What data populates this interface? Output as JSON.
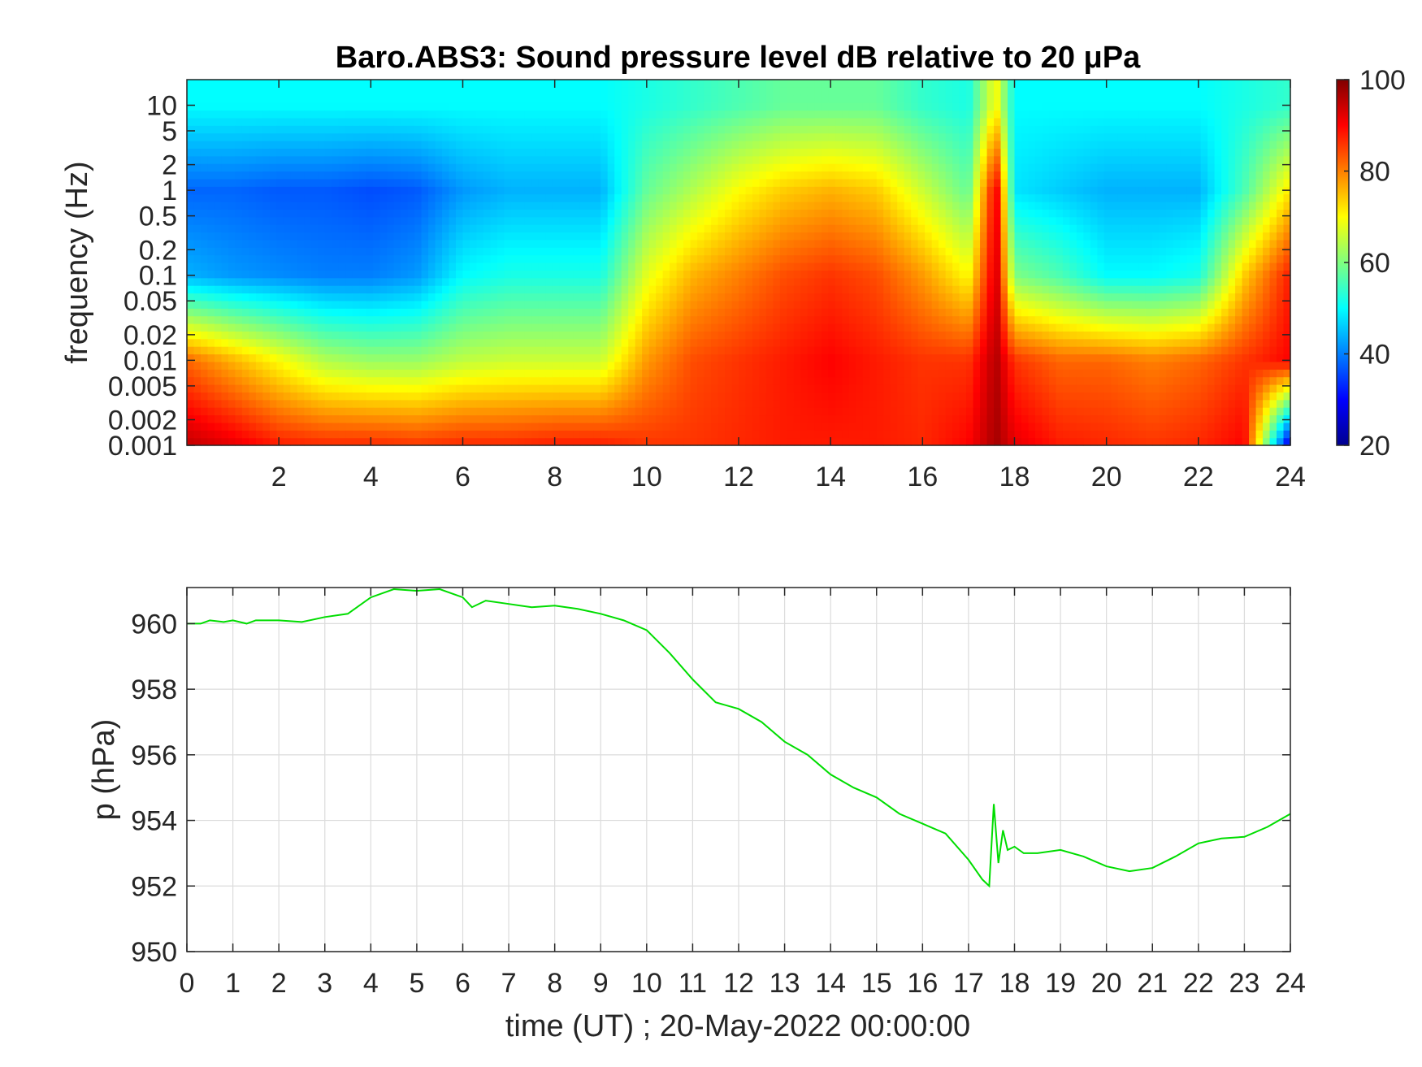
{
  "chart_data": [
    {
      "type": "heatmap",
      "title": "Baro.ABS3: Sound pressure level dB relative to 20 μPa",
      "ylabel": "frequency (Hz)",
      "xlabel": "",
      "xlim": [
        0,
        24
      ],
      "x_ticks": [
        2,
        4,
        6,
        8,
        10,
        12,
        14,
        16,
        18,
        20,
        22,
        24
      ],
      "y_scale": "log",
      "ylim": [
        0.001,
        20
      ],
      "y_ticks": [
        0.001,
        0.002,
        0.005,
        0.01,
        0.02,
        0.05,
        0.1,
        0.2,
        0.5,
        1,
        2,
        5,
        10
      ],
      "y_tick_labels": [
        "0.001",
        "0.002",
        "0.005",
        "0.01",
        "0.02",
        "0.05",
        "0.1",
        "0.2",
        "0.5",
        "1",
        "2",
        "5",
        "10"
      ],
      "colormap": "jet",
      "colorbar": {
        "range": [
          20,
          100
        ],
        "ticks": [
          20,
          40,
          60,
          80,
          100
        ]
      },
      "grid": false,
      "level_samples_dB": {
        "hours": [
          0,
          1,
          2,
          3,
          4,
          5,
          6,
          7,
          8,
          9,
          10,
          11,
          12,
          13,
          14,
          15,
          16,
          17,
          17.6,
          18,
          19,
          20,
          21,
          22,
          23,
          24
        ],
        "at_0.001Hz": [
          95,
          92,
          88,
          87,
          87,
          86,
          87,
          87,
          88,
          88,
          86,
          86,
          87,
          88,
          88,
          88,
          87,
          90,
          97,
          92,
          88,
          87,
          86,
          87,
          90,
          25
        ],
        "at_0.01Hz": [
          82,
          76,
          70,
          64,
          62,
          62,
          65,
          66,
          66,
          66,
          78,
          84,
          86,
          88,
          90,
          88,
          86,
          86,
          96,
          86,
          82,
          82,
          80,
          82,
          86,
          90
        ],
        "at_0.1Hz": [
          44,
          42,
          41,
          40,
          40,
          42,
          50,
          52,
          52,
          52,
          68,
          76,
          80,
          84,
          86,
          84,
          78,
          70,
          94,
          60,
          56,
          50,
          50,
          52,
          74,
          88
        ],
        "at_1Hz": [
          38,
          38,
          37,
          37,
          36,
          37,
          42,
          44,
          44,
          44,
          58,
          64,
          70,
          74,
          76,
          74,
          66,
          58,
          92,
          48,
          46,
          44,
          44,
          44,
          56,
          72
        ],
        "at_10Hz": [
          50,
          50,
          50,
          50,
          50,
          50,
          50,
          50,
          50,
          50,
          52,
          54,
          56,
          58,
          58,
          58,
          54,
          52,
          70,
          50,
          50,
          50,
          50,
          50,
          52,
          54
        ]
      }
    },
    {
      "type": "line",
      "xlabel": "time (UT) ; 20-May-2022 00:00:00",
      "ylabel": "p (hPa)",
      "xlim": [
        0,
        24
      ],
      "ylim": [
        950,
        961.1
      ],
      "x_ticks": [
        0,
        1,
        2,
        3,
        4,
        5,
        6,
        7,
        8,
        9,
        10,
        11,
        12,
        13,
        14,
        15,
        16,
        17,
        18,
        19,
        20,
        21,
        22,
        23,
        24
      ],
      "y_ticks": [
        950,
        952,
        954,
        956,
        958,
        960
      ],
      "grid": true,
      "series": [
        {
          "color": "#00dd00",
          "x": [
            0,
            0.3,
            0.5,
            0.8,
            1,
            1.3,
            1.5,
            2,
            2.5,
            3,
            3.5,
            4,
            4.5,
            5,
            5.5,
            6,
            6.2,
            6.5,
            7,
            7.5,
            8,
            8.5,
            9,
            9.5,
            10,
            10.5,
            11,
            11.5,
            12,
            12.5,
            13,
            13.5,
            14,
            14.5,
            15,
            15.5,
            16,
            16.5,
            17,
            17.3,
            17.45,
            17.55,
            17.65,
            17.75,
            17.85,
            18,
            18.2,
            18.5,
            19,
            19.5,
            20,
            20.5,
            21,
            21.5,
            22,
            22.5,
            23,
            23.5,
            24
          ],
          "y": [
            960.0,
            960.0,
            960.1,
            960.05,
            960.1,
            960.0,
            960.1,
            960.1,
            960.05,
            960.2,
            960.3,
            960.8,
            961.05,
            961.0,
            961.05,
            960.8,
            960.5,
            960.7,
            960.6,
            960.5,
            960.55,
            960.45,
            960.3,
            960.1,
            959.8,
            959.1,
            958.3,
            957.6,
            957.4,
            957.0,
            956.4,
            956.0,
            955.4,
            955.0,
            954.7,
            954.2,
            953.9,
            953.6,
            952.8,
            952.2,
            952.0,
            954.5,
            952.7,
            953.7,
            953.1,
            953.2,
            953.0,
            953.0,
            953.1,
            952.9,
            952.6,
            952.45,
            952.55,
            952.9,
            953.3,
            953.45,
            953.5,
            953.8,
            954.2
          ]
        }
      ]
    }
  ]
}
